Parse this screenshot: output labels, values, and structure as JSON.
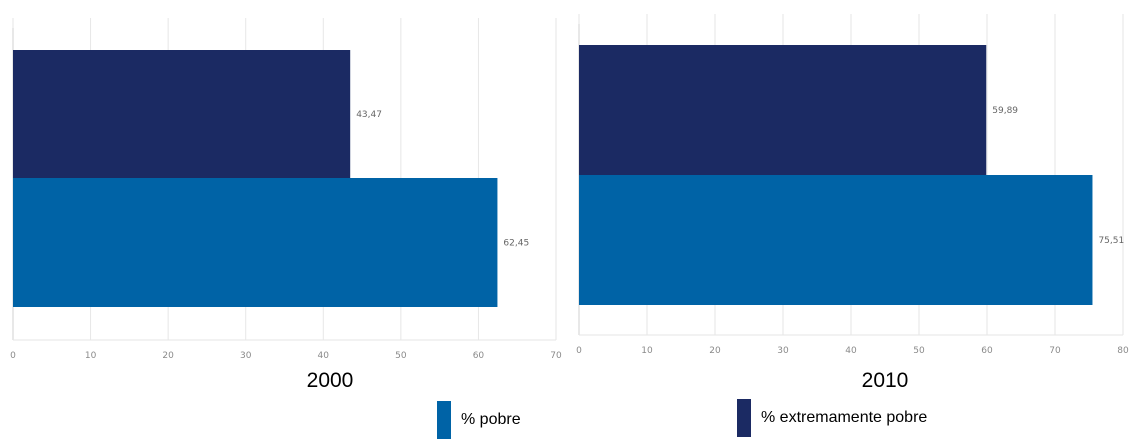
{
  "colors": {
    "pobre": "#0063a6",
    "extremamente_pobre": "#1b2a63",
    "grid": "#e6e6e6",
    "axis_text": "#8a8a8a",
    "label_text": "#666666"
  },
  "chart_data": [
    {
      "type": "bar",
      "orientation": "horizontal",
      "title": "2000",
      "xlim": [
        0,
        70
      ],
      "xticks": [
        0,
        10,
        20,
        30,
        40,
        50,
        60,
        70
      ],
      "grid": true,
      "series": [
        {
          "name": "% extremamente pobre",
          "values": [
            43.47
          ],
          "labels": [
            "43,47"
          ]
        },
        {
          "name": "% pobre",
          "values": [
            62.45
          ],
          "labels": [
            "62,45"
          ]
        }
      ]
    },
    {
      "type": "bar",
      "orientation": "horizontal",
      "title": "2010",
      "xlim": [
        0,
        80
      ],
      "xticks": [
        0,
        10,
        20,
        30,
        40,
        50,
        60,
        70,
        80
      ],
      "grid": true,
      "series": [
        {
          "name": "% extremamente pobre",
          "values": [
            59.89
          ],
          "labels": [
            "59,89"
          ]
        },
        {
          "name": "% pobre",
          "values": [
            75.51
          ],
          "labels": [
            "75,51"
          ]
        }
      ]
    }
  ],
  "legend": {
    "position": "bottom",
    "items": [
      {
        "label": "% pobre"
      },
      {
        "label": "% extremamente pobre"
      }
    ]
  }
}
